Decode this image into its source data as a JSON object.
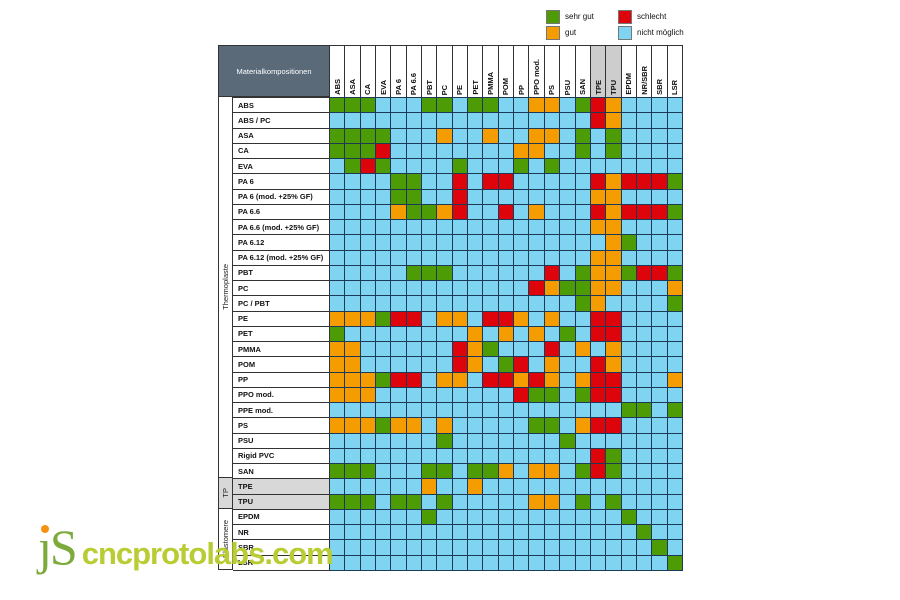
{
  "title": "Materialkompositionen",
  "legend": {
    "items": [
      {
        "label": "sehr gut",
        "color": "#4e9c05"
      },
      {
        "label": "gut",
        "color": "#f59d00"
      },
      {
        "label": "schlecht",
        "color": "#dd040b"
      },
      {
        "label": "nicht möglich",
        "color": "#7ed4f1"
      }
    ]
  },
  "watermark": {
    "prefix": "ȷS",
    "text": "cncprotolabs.com"
  },
  "chart_data": {
    "type": "heatmap",
    "title": "Materialkompositionen",
    "columns": [
      "ABS",
      "ASA",
      "CA",
      "EVA",
      "PA 6",
      "PA 6.6",
      "PBT",
      "PC",
      "PE",
      "PET",
      "PMMA",
      "POM",
      "PP",
      "PPO mod.",
      "PS",
      "PSU",
      "SAN",
      "TPE",
      "TPU",
      "EPDM",
      "NR/SBR",
      "SBR",
      "LSR"
    ],
    "gray_columns": [
      "TPE",
      "TPU"
    ],
    "rows": [
      "ABS",
      "ABS / PC",
      "ASA",
      "CA",
      "EVA",
      "PA 6",
      "PA 6 (mod. +25% GF)",
      "PA 6.6",
      "PA 6.6 (mod. +25% GF)",
      "PA 6.12",
      "PA 6.12 (mod. +25% GF)",
      "PBT",
      "PC",
      "PC / PBT",
      "PE",
      "PET",
      "PMMA",
      "POM",
      "PP",
      "PPO mod.",
      "PPE mod.",
      "PS",
      "PSU",
      "Rigid PVC",
      "SAN",
      "TPE",
      "TPU",
      "EPDM",
      "NR",
      "SBR",
      "LSR"
    ],
    "gray_rows": [
      25,
      26
    ],
    "row_groups": [
      {
        "label": "Thermoplaste",
        "row_count": 25,
        "gray": false
      },
      {
        "label": "TP",
        "row_count": 2,
        "gray": true
      },
      {
        "label": "Elastomere",
        "row_count": 4,
        "gray": false
      }
    ],
    "rating_labels": {
      "g": "sehr gut",
      "o": "gut",
      "r": "schlecht",
      "n": "nicht möglich"
    },
    "rating_colors": {
      "g": "#4e9c05",
      "o": "#f59d00",
      "r": "#dd040b",
      "n": "#7ed4f1"
    },
    "values": [
      "gggnnnggnggnnoongronnnn",
      "nnnnnnnnnnnnnnnnnronnnn",
      "ggggnnnonnonnoongngnnnn",
      "gggrnnnnnnnnoonngngnnnn",
      "ngrgnnnngnnngngnnnnnnnn",
      "nnnnggnnrnrrnnnnnrorrrg",
      "nnnnggnnrnnnnnnnnoonnnn",
      "nnnnoggornnrnonnnrorrrg",
      "nnnnnnnnnnnnnnnnnoonnnn",
      "nnnnnnnnnnnnnnnnnnognnn",
      "nnnnnnnnnnnnnnnnnoonnnn",
      "nnnnngggnnnnnnrngoogrrg",
      "nnnnnnnnnnnnnroggoonnno",
      "nnnnnnnnnnnnnnnngonnnng",
      "ooogrrnoonrrononnrrnnnn",
      "gnnnnnnnnononongnrrnnnn",
      "oonnnnnnrognnnrnononnnn",
      "oonnnnnnrongrnonnronnnn",
      "ooogrrnoonrroronorrnnno",
      "ooonnnnnnnnnrggngrrnnnn",
      "nnnnnnnnnnnnnnnnnnnggng",
      "ooogoononnnnnggnorrnnnn",
      "nnnnnnngnnnnnnngnnnnnnn",
      "nnnnnnnnnnnnnnnnnrgnnnn",
      "gggnnnggnggonoongrgnnnn",
      "nnnnnnonnonnnnnnnnnnnnn",
      "gggnggngnnnnnoongngnnnn",
      "nnnnnngnnnnnnnnnnnngnnn",
      "nnnnnnnnnnnnnnnnnnnngnn",
      "nnnnnnnnnnnnnnnnnnnnngn",
      "nnnnnnnnnnnnnnnnnnnnnng"
    ],
    "legend_position": "top-right",
    "notes": "Rows = Materialkompositionen (substrate), columns = partner material; cell color encodes compatibility rating"
  }
}
